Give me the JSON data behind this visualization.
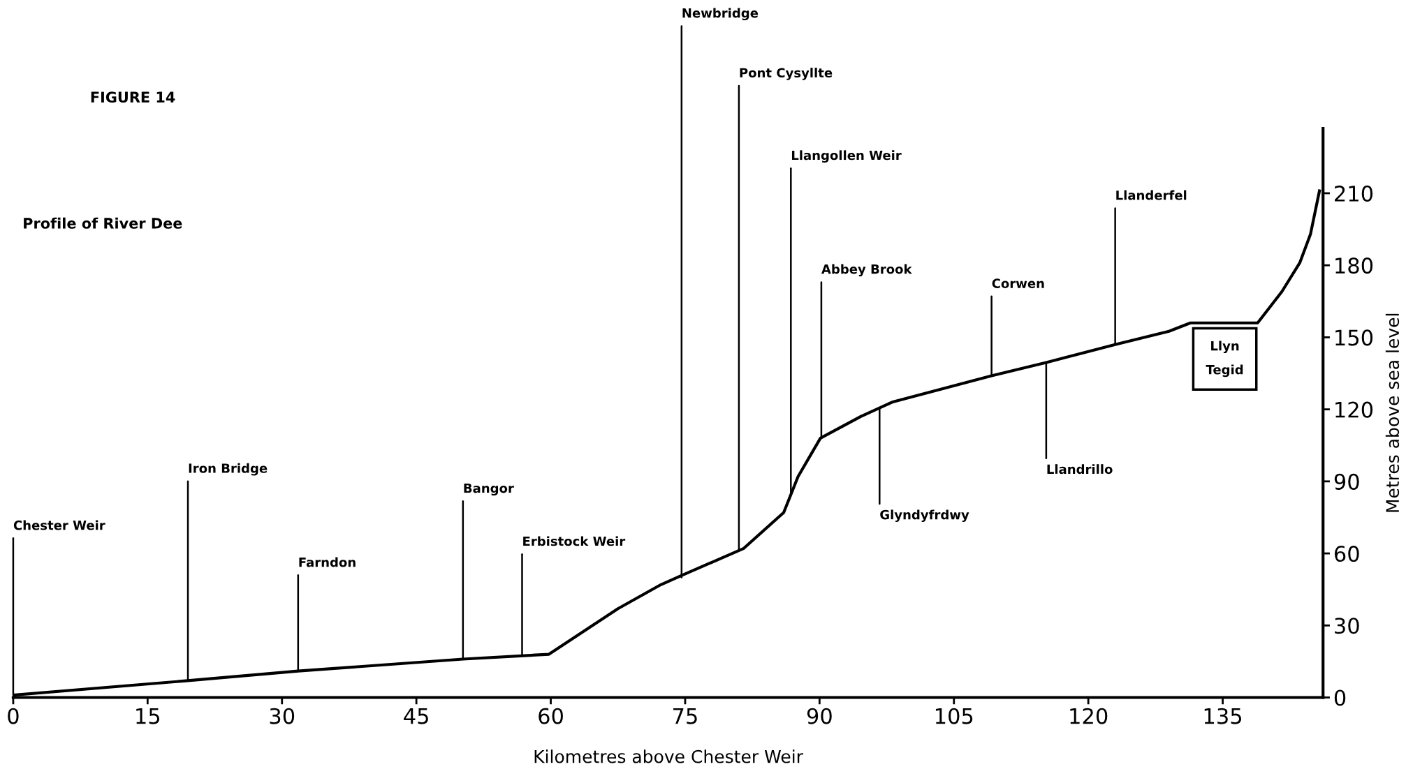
{
  "chart_data": {
    "type": "line",
    "title": "FIGURE 14",
    "subtitle": "Profile of River Dee",
    "xlabel": "Kilometres above Chester Weir",
    "ylabel": "Metres above sea level",
    "series": [
      {
        "color": "#000000",
        "x": [
          0,
          19.5,
          31.8,
          50.2,
          59.8,
          67.5,
          72.3,
          74.7,
          81.5,
          86,
          87.6,
          90.1,
          94.6,
          98.1,
          109.2,
          115.3,
          123,
          129,
          131.4,
          138.9,
          141.6,
          143.6,
          144.8,
          145.8
        ],
        "values": [
          1,
          7,
          11,
          16,
          18,
          37,
          47,
          51,
          62,
          77,
          92,
          108,
          117,
          123,
          134,
          139.5,
          147,
          152.5,
          156,
          156,
          169,
          181,
          193,
          211
        ]
      }
    ],
    "xlim": [
      0,
      146.2
    ],
    "ylim": [
      0,
      237
    ],
    "xticks": [
      0,
      15,
      30,
      45,
      60,
      75,
      90,
      105,
      120,
      135
    ],
    "yticks": [
      0,
      30,
      60,
      90,
      120,
      150,
      180,
      210
    ],
    "grid": false,
    "legend": false,
    "marker": "none",
    "line_style": "solid",
    "annotations": [
      {
        "text": "Chester Weir",
        "x": 0,
        "y": 1
      },
      {
        "text": "Iron Bridge",
        "x": 19.5,
        "y": 7
      },
      {
        "text": "Farndon",
        "x": 31.8,
        "y": 11
      },
      {
        "text": "Bangor",
        "x": 50.2,
        "y": 16
      },
      {
        "text": "Erbistock Weir",
        "x": 56.8,
        "y": 17.4
      },
      {
        "text": "Newbridge",
        "x": 74.6,
        "y": 50
      },
      {
        "text": "Pont Cysyllte",
        "x": 81,
        "y": 61.2
      },
      {
        "text": "Llangollen Weir",
        "x": 86.8,
        "y": 84.5
      },
      {
        "text": "Abbey Brook",
        "x": 90.2,
        "y": 108
      },
      {
        "text": "Glyndyfrdwy",
        "x": 96.7,
        "y": 120.6
      },
      {
        "text": "Corwen",
        "x": 109.2,
        "y": 134
      },
      {
        "text": "Llandrillo",
        "x": 115.3,
        "y": 139
      },
      {
        "text": "Llanderfel",
        "x": 123,
        "y": 147
      },
      "Llyn\nTegid"
    ]
  }
}
